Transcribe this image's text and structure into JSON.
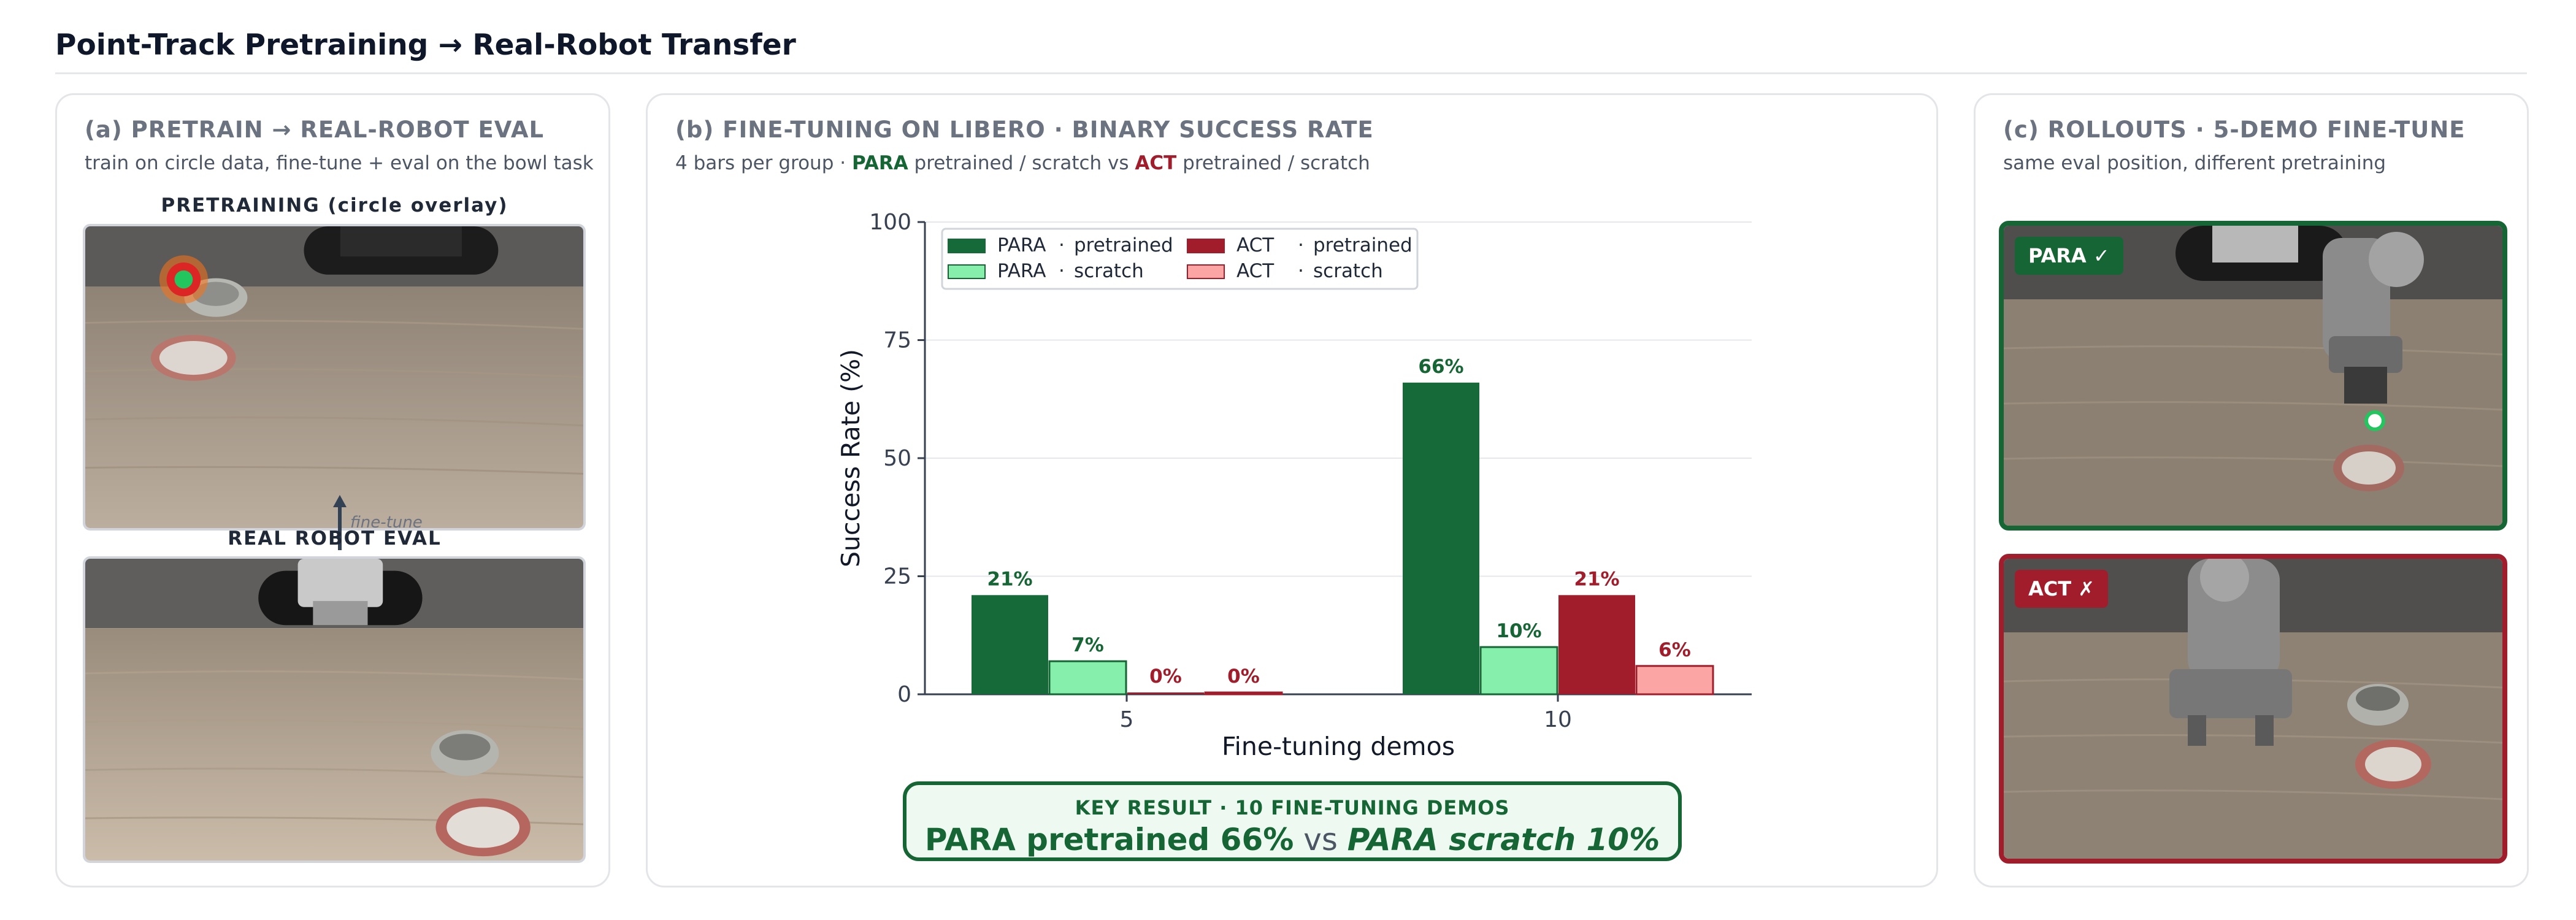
{
  "page": {
    "title": "Point-Track Pretraining → Real-Robot Transfer"
  },
  "panel_a": {
    "title": "(a) PRETRAIN → REAL-ROBOT EVAL",
    "subtitle": "train on circle data, fine-tune + eval on the bowl task",
    "top_label": "PRETRAINING (circle overlay)",
    "arrow_label": "fine-tune",
    "bottom_label": "REAL ROBOT EVAL"
  },
  "panel_b": {
    "title": "(b) FINE-TUNING ON LIBERO · BINARY SUCCESS RATE",
    "subtitle_pre": "4 bars per group · ",
    "subtitle_para": "PARA",
    "subtitle_mid1": " pretrained / scratch vs ",
    "subtitle_act": "ACT",
    "subtitle_mid2": " pretrained / scratch",
    "key_result": {
      "heading": "KEY RESULT · 10 FINE-TUNING DEMOS",
      "left": "PARA pretrained 66%",
      "vs": " vs ",
      "right": "PARA scratch 10%"
    }
  },
  "panel_c": {
    "title": "(c) ROLLOUTS · 5-DEMO FINE-TUNE",
    "subtitle": "same eval position, different pretraining",
    "para_badge": "PARA ✓",
    "act_badge": "ACT ✗"
  },
  "colors": {
    "para_pretrained": "#166939",
    "para_scratch": "#86efac",
    "act_pretrained": "#a11d2b",
    "act_scratch": "#fca5a5"
  },
  "chart_data": {
    "type": "bar",
    "xlabel": "Fine-tuning demos",
    "ylabel": "Success Rate (%)",
    "ylim": [
      0,
      100
    ],
    "yticks": [
      0,
      25,
      50,
      75,
      100
    ],
    "categories": [
      "5",
      "10"
    ],
    "grid": true,
    "legend_position": "top-left",
    "series": [
      {
        "name": "PARA · pretrained",
        "legend_model": "PARA",
        "legend_variant": "pretrained",
        "values": [
          21,
          66
        ],
        "labels": [
          "21%",
          "66%"
        ],
        "color": "#166939",
        "label_color": "#166534"
      },
      {
        "name": "PARA · scratch",
        "legend_model": "PARA",
        "legend_variant": "scratch",
        "values": [
          7,
          10
        ],
        "labels": [
          "7%",
          "10%"
        ],
        "color": "#86efac",
        "label_color": "#166534"
      },
      {
        "name": "ACT · pretrained",
        "legend_model": "ACT",
        "legend_variant": "pretrained",
        "values": [
          0,
          21
        ],
        "labels": [
          "0%",
          "21%"
        ],
        "color": "#a11d2b",
        "label_color": "#a11d2b"
      },
      {
        "name": "ACT · scratch",
        "legend_model": "ACT",
        "legend_variant": "scratch",
        "values": [
          0,
          6
        ],
        "labels": [
          "0%",
          "6%"
        ],
        "color": "#fca5a5",
        "label_color": "#a11d2b"
      }
    ]
  }
}
